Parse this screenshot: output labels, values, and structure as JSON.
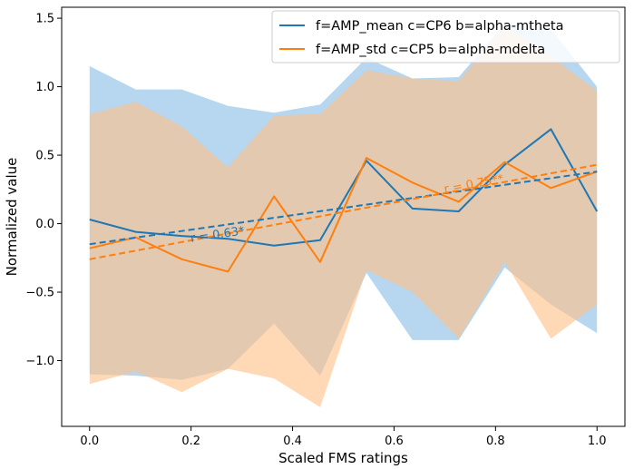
{
  "chart_data": {
    "type": "line",
    "title": "",
    "xlabel": "Scaled FMS ratings",
    "ylabel": "Normalized value",
    "xlim": [
      -0.055,
      1.055
    ],
    "ylim": [
      -1.48,
      1.58
    ],
    "xticks": [
      "0.0",
      "0.2",
      "0.4",
      "0.6",
      "0.8",
      "1.0"
    ],
    "xtick_values": [
      0.0,
      0.2,
      0.4,
      0.6,
      0.8,
      1.0
    ],
    "yticks": [
      "−1.0",
      "−0.5",
      "0.0",
      "0.5",
      "1.0",
      "1.5"
    ],
    "ytick_values": [
      -1.0,
      -0.5,
      0.0,
      0.5,
      1.0,
      1.5
    ],
    "grid": false,
    "legend_position": "top-right",
    "x": [
      0.0,
      0.0909,
      0.1818,
      0.2727,
      0.3636,
      0.4545,
      0.5455,
      0.6364,
      0.7273,
      0.8182,
      0.9091,
      1.0
    ],
    "series": [
      {
        "name": "f=AMP_mean c=CP6 b=alpha-mtheta",
        "color": "#1f77b4",
        "band_color": "#9ecae9",
        "values": [
          0.03,
          -0.06,
          -0.09,
          -0.11,
          -0.16,
          -0.12,
          0.46,
          0.11,
          0.09,
          0.43,
          0.69,
          0.09
        ],
        "upper": [
          1.15,
          0.98,
          0.98,
          0.86,
          0.81,
          0.87,
          1.21,
          1.06,
          1.07,
          1.46,
          1.42,
          1.0
        ],
        "lower": [
          -1.1,
          -1.11,
          -1.14,
          -1.06,
          -0.73,
          -1.11,
          -0.36,
          -0.85,
          -0.85,
          -0.32,
          -0.59,
          -0.8
        ],
        "trend": {
          "start": -0.15,
          "end": 0.38
        },
        "r_label": "r = 0.63*"
      },
      {
        "name": "f=AMP_std c=CP5 b=alpha-mdelta",
        "color": "#ff7f0e",
        "band_color": "#ffbf86",
        "values": [
          -0.18,
          -0.1,
          -0.26,
          -0.35,
          0.2,
          -0.28,
          0.48,
          0.3,
          0.16,
          0.45,
          0.26,
          0.38
        ],
        "upper": [
          0.8,
          0.89,
          0.71,
          0.41,
          0.79,
          0.8,
          1.12,
          1.06,
          1.04,
          1.44,
          1.22,
          0.97
        ],
        "lower": [
          -1.17,
          -1.08,
          -1.23,
          -1.06,
          -1.13,
          -1.34,
          -0.34,
          -0.5,
          -0.84,
          -0.28,
          -0.84,
          -0.59
        ],
        "trend": {
          "start": -0.26,
          "end": 0.43
        },
        "r_label": "r = 0.75**"
      }
    ]
  }
}
